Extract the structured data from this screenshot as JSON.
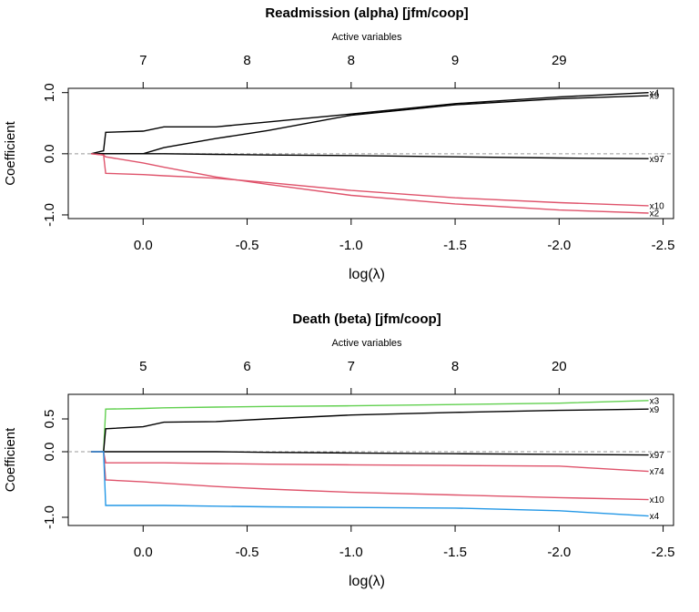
{
  "chart_data": [
    {
      "type": "line",
      "title": "Readmission (alpha)  [jfm/coop]",
      "top_axis_title": "Active variables",
      "top_axis_labels": [
        7,
        8,
        8,
        9,
        29
      ],
      "xlabel": "log(λ)",
      "ylabel": "Coefficient",
      "xlim": [
        0.36,
        -2.55
      ],
      "xticks": [
        {
          "value": 0,
          "label": "0.0"
        },
        -0.5,
        {
          "value": -1,
          "label": "-1.0"
        },
        -1.5,
        {
          "value": -2,
          "label": "-2.0"
        },
        -2.5
      ],
      "ylim": [
        -1.06,
        1.07
      ],
      "yticks": [
        {
          "value": 1,
          "label": "1.0"
        },
        {
          "value": 0,
          "label": "0.0"
        },
        {
          "value": -1,
          "label": "-1.0"
        }
      ],
      "x": [
        0.25,
        0.19,
        0.18,
        0.0,
        -0.1,
        -0.35,
        -0.6,
        -1.0,
        -1.5,
        -2.0,
        -2.43
      ],
      "series": [
        {
          "name": "x4",
          "color": "#000000",
          "values": [
            0,
            0.05,
            0.35,
            0.37,
            0.44,
            0.44,
            0.52,
            0.65,
            0.82,
            0.93,
            1.0
          ]
        },
        {
          "name": "x9",
          "color": "#000000",
          "values": [
            0,
            0,
            0,
            0,
            0.1,
            0.25,
            0.38,
            0.63,
            0.8,
            0.9,
            0.95
          ]
        },
        {
          "name": "x97",
          "color": "#000000",
          "values": [
            0,
            0,
            0,
            0,
            0,
            -0.01,
            -0.02,
            -0.03,
            -0.05,
            -0.07,
            -0.08
          ]
        },
        {
          "name": "x10",
          "color": "#DF536B",
          "values": [
            0,
            -0.02,
            -0.32,
            -0.34,
            -0.36,
            -0.4,
            -0.47,
            -0.6,
            -0.72,
            -0.8,
            -0.85
          ]
        },
        {
          "name": "x2",
          "color": "#DF536B",
          "values": [
            0,
            -0.02,
            -0.05,
            -0.15,
            -0.22,
            -0.38,
            -0.5,
            -0.68,
            -0.82,
            -0.92,
            -0.97
          ]
        }
      ]
    },
    {
      "type": "line",
      "title": "Death (beta)  [jfm/coop]",
      "top_axis_title": "Active variables",
      "top_axis_labels": [
        5,
        6,
        7,
        8,
        20
      ],
      "xlabel": "log(λ)",
      "ylabel": "Coefficient",
      "xlim": [
        0.36,
        -2.55
      ],
      "xticks": [
        {
          "value": 0,
          "label": "0.0"
        },
        -0.5,
        {
          "value": -1,
          "label": "-1.0"
        },
        -1.5,
        {
          "value": -2,
          "label": "-2.0"
        },
        -2.5
      ],
      "ylim": [
        -1.125,
        0.875
      ],
      "yticks": [
        0.5,
        {
          "value": 0,
          "label": "0.0"
        },
        {
          "value": -1,
          "label": "-1.0"
        }
      ],
      "x": [
        0.25,
        0.19,
        0.18,
        0.0,
        -0.1,
        -0.35,
        -0.6,
        -1.0,
        -1.5,
        -2.0,
        -2.43
      ],
      "series": [
        {
          "name": "x3",
          "color": "#61D04F",
          "values": [
            0,
            0,
            0.65,
            0.66,
            0.67,
            0.68,
            0.69,
            0.7,
            0.72,
            0.74,
            0.78
          ]
        },
        {
          "name": "x9",
          "color": "#000000",
          "values": [
            0,
            0,
            0.35,
            0.38,
            0.45,
            0.46,
            0.5,
            0.56,
            0.6,
            0.63,
            0.65
          ]
        },
        {
          "name": "x97",
          "color": "#000000",
          "values": [
            0,
            0,
            0,
            0,
            0,
            0,
            -0.01,
            -0.02,
            -0.03,
            -0.04,
            -0.05
          ]
        },
        {
          "name": "x74",
          "color": "#DF536B",
          "values": [
            0,
            0,
            -0.17,
            -0.17,
            -0.17,
            -0.18,
            -0.19,
            -0.2,
            -0.21,
            -0.22,
            -0.3
          ]
        },
        {
          "name": "x10",
          "color": "#DF536B",
          "values": [
            0,
            0,
            -0.43,
            -0.46,
            -0.48,
            -0.53,
            -0.57,
            -0.62,
            -0.66,
            -0.7,
            -0.73
          ]
        },
        {
          "name": "x4",
          "color": "#2297E6",
          "values": [
            0,
            0,
            -0.82,
            -0.82,
            -0.82,
            -0.83,
            -0.84,
            -0.85,
            -0.86,
            -0.9,
            -0.98
          ]
        }
      ]
    }
  ]
}
